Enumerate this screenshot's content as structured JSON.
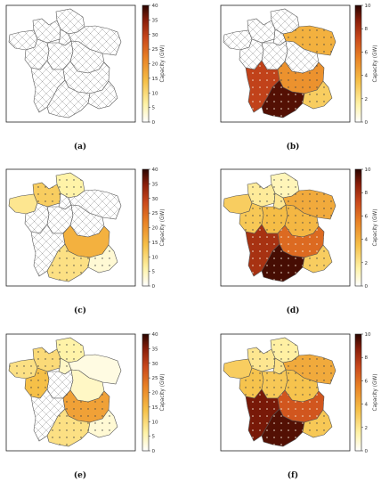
{
  "colors": {
    "none": "#ffffff",
    "hatch_stroke": "#999999",
    "cmap": [
      "#ffffff",
      "#fff3a8",
      "#f6c048",
      "#e98225",
      "#c9481c",
      "#8a1e0a",
      "#3a0a02"
    ]
  },
  "regions": [
    "Hauts-de-France",
    "Normandie",
    "Bretagne",
    "Ile-de-France",
    "Grand Est",
    "Pays de la Loire",
    "Centre-Val de Loire",
    "Bourgogne-Franche-Comte",
    "Nouvelle-Aquitaine",
    "Auvergne-Rhone-Alpes",
    "Occitanie",
    "Provence-Alpes-Cote d'Azur"
  ],
  "panels": [
    {
      "label": "(a)",
      "colorbar": {
        "label": "Capacity (GW)",
        "ticks": [
          "0",
          "5",
          "10",
          "15",
          "20",
          "25",
          "30",
          "35",
          "40"
        ],
        "max": 40
      },
      "values": [
        null,
        null,
        null,
        null,
        null,
        null,
        null,
        null,
        null,
        null,
        null,
        null
      ],
      "dotted": [
        false,
        false,
        false,
        false,
        false,
        false,
        false,
        false,
        false,
        false,
        false,
        false
      ]
    },
    {
      "label": "(b)",
      "colorbar": {
        "label": "Capacity (GW)",
        "ticks": [
          "0",
          "2",
          "4",
          "6",
          "8",
          "10"
        ],
        "max": 10
      },
      "values": [
        null,
        null,
        null,
        null,
        4.0,
        null,
        null,
        null,
        7.4,
        5.0,
        9.6,
        3.0
      ],
      "dotted": [
        false,
        false,
        false,
        false,
        true,
        false,
        false,
        false,
        true,
        true,
        true,
        true
      ]
    },
    {
      "label": "(c)",
      "colorbar": {
        "label": "Capacity (GW)",
        "ticks": [
          "0",
          "5",
          "10",
          "15",
          "20",
          "25",
          "30",
          "35",
          "40"
        ],
        "max": 40
      },
      "values": [
        6,
        12,
        8,
        null,
        null,
        null,
        null,
        null,
        null,
        16,
        9,
        3
      ],
      "dotted": [
        true,
        true,
        false,
        false,
        false,
        false,
        false,
        false,
        false,
        false,
        true,
        true
      ]
    },
    {
      "label": "(d)",
      "colorbar": {
        "label": "Capacity (GW)",
        "ticks": [
          "0",
          "2",
          "4",
          "6",
          "8",
          "10"
        ],
        "max": 10
      },
      "values": [
        1.2,
        1.8,
        3.0,
        2.0,
        4.2,
        3.2,
        3.6,
        3.8,
        8.0,
        6.2,
        9.8,
        3.0
      ],
      "dotted": [
        true,
        true,
        false,
        true,
        true,
        true,
        true,
        true,
        true,
        true,
        true,
        true
      ]
    },
    {
      "label": "(e)",
      "colorbar": {
        "label": "Capacity (GW)",
        "ticks": [
          "0",
          "5",
          "10",
          "15",
          "20",
          "25",
          "30",
          "35",
          "40"
        ],
        "max": 40
      },
      "values": [
        6,
        10,
        9,
        4,
        2,
        14,
        null,
        4,
        null,
        18,
        9,
        3
      ],
      "dotted": [
        true,
        true,
        true,
        true,
        false,
        true,
        false,
        false,
        false,
        true,
        true,
        true
      ]
    },
    {
      "label": "(f)",
      "colorbar": {
        "label": "Capacity (GW)",
        "ticks": [
          "0",
          "2",
          "4",
          "6",
          "8",
          "10"
        ],
        "max": 10
      },
      "values": [
        1.6,
        2.0,
        3.0,
        2.2,
        4.2,
        3.4,
        3.2,
        3.4,
        9.0,
        6.8,
        9.6,
        3.2
      ],
      "dotted": [
        true,
        true,
        false,
        true,
        true,
        true,
        true,
        true,
        true,
        true,
        true,
        true
      ]
    }
  ]
}
